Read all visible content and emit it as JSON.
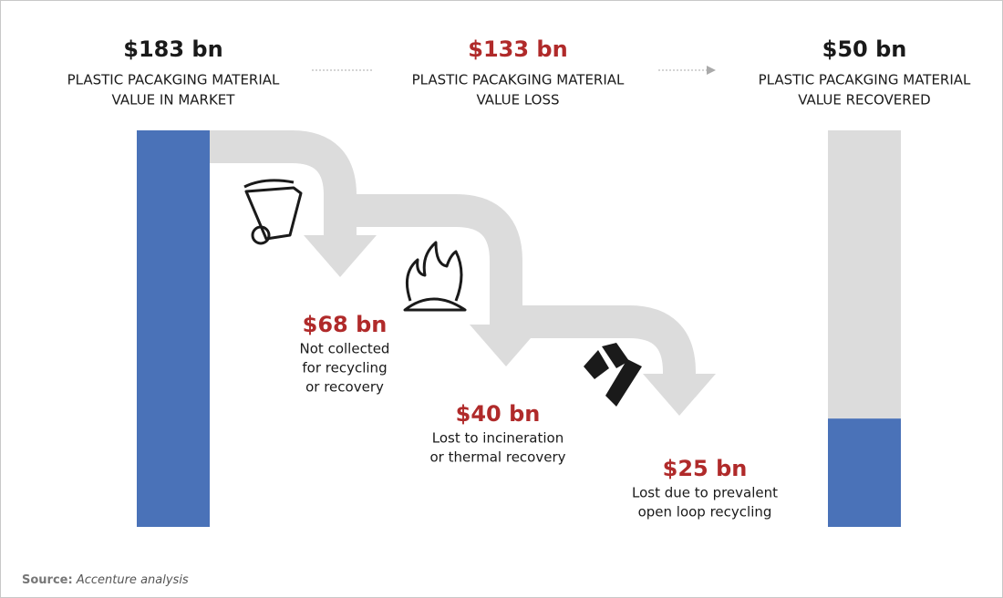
{
  "stages": [
    {
      "amount": 183,
      "amount_label": "$183 bn",
      "label_lines": [
        "PLASTIC PACAKGING MATERIAL",
        "VALUE IN MARKET"
      ]
    },
    {
      "amount": 133,
      "amount_label": "$133 bn",
      "label_lines": [
        "PLASTIC PACAKGING MATERIAL",
        "VALUE LOSS"
      ]
    },
    {
      "amount": 50,
      "amount_label": "$50 bn",
      "label_lines": [
        "PLASTIC PACAKGING MATERIAL",
        "VALUE RECOVERED"
      ]
    }
  ],
  "losses": [
    {
      "amount_label": "$68 bn",
      "description_lines": [
        "Not collected",
        "for recycling",
        "or recovery"
      ]
    },
    {
      "amount_label": "$40 bn",
      "description_lines": [
        "Lost to incineration",
        "or thermal recovery"
      ]
    },
    {
      "amount_label": "$25 bn",
      "description_lines": [
        "Lost due to prevalent",
        "open loop recycling"
      ]
    }
  ],
  "source": {
    "label": "Source:",
    "text": "Accenture analysis"
  }
}
